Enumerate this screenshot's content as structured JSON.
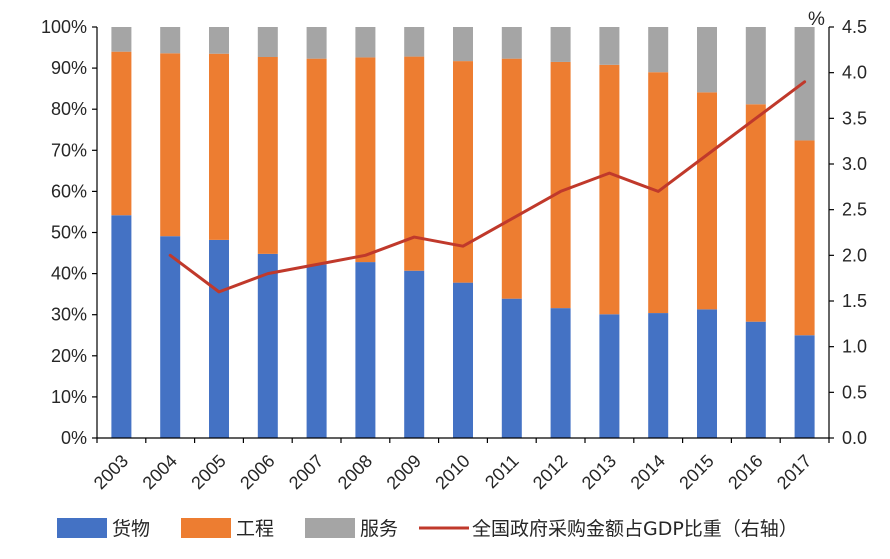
{
  "chart_data": {
    "type": "bar",
    "stacked": true,
    "percent_stacked": true,
    "categories": [
      "2003",
      "2004",
      "2005",
      "2006",
      "2007",
      "2008",
      "2009",
      "2010",
      "2011",
      "2012",
      "2013",
      "2014",
      "2015",
      "2016",
      "2017"
    ],
    "series": [
      {
        "name": "货物",
        "color": "#4472c4",
        "values": [
          54.2,
          49.1,
          48.2,
          44.8,
          42.2,
          42.8,
          40.7,
          37.8,
          33.9,
          31.6,
          30.1,
          30.4,
          31.3,
          28.3,
          25.0
        ]
      },
      {
        "name": "工程",
        "color": "#ed7d31",
        "values": [
          39.8,
          44.5,
          45.3,
          47.9,
          50.1,
          49.8,
          52.1,
          53.9,
          58.4,
          59.9,
          60.7,
          58.6,
          52.8,
          52.9,
          47.4
        ]
      },
      {
        "name": "服务",
        "color": "#a5a5a5",
        "values": [
          6.0,
          6.4,
          6.5,
          7.3,
          7.7,
          7.4,
          7.2,
          8.3,
          7.7,
          8.5,
          9.2,
          11.0,
          15.9,
          18.8,
          27.6
        ]
      }
    ],
    "line_series": {
      "name": "全国政府采购金额占GDP比重（右轴）",
      "color": "#c0392b",
      "axis": "right",
      "x": [
        "2004",
        "2005",
        "2006",
        "2007",
        "2008",
        "2009",
        "2010",
        "2011",
        "2012",
        "2013",
        "2014",
        "2015",
        "2016",
        "2017"
      ],
      "values": [
        2.0,
        1.6,
        1.8,
        1.9,
        2.0,
        2.2,
        2.1,
        2.4,
        2.7,
        2.9,
        2.7,
        3.1,
        3.5,
        3.9
      ]
    },
    "y_left": {
      "ylim": [
        0,
        100
      ],
      "ticks": [
        0,
        10,
        20,
        30,
        40,
        50,
        60,
        70,
        80,
        90,
        100
      ],
      "tick_labels": [
        "0%",
        "10%",
        "20%",
        "30%",
        "40%",
        "50%",
        "60%",
        "70%",
        "80%",
        "90%",
        "100%"
      ]
    },
    "y_right": {
      "unit": "%",
      "ylim": [
        0,
        4.5
      ],
      "ticks": [
        0,
        0.5,
        1,
        1.5,
        2,
        2.5,
        3,
        3.5,
        4,
        4.5
      ],
      "tick_labels": [
        "0.0",
        "0.5",
        "1.0",
        "1.5",
        "2.0",
        "2.5",
        "3.0",
        "3.5",
        "4.0",
        "4.5"
      ]
    },
    "title": "",
    "xlabel": "",
    "ylabel": "",
    "grid": false,
    "legend_position": "bottom"
  }
}
